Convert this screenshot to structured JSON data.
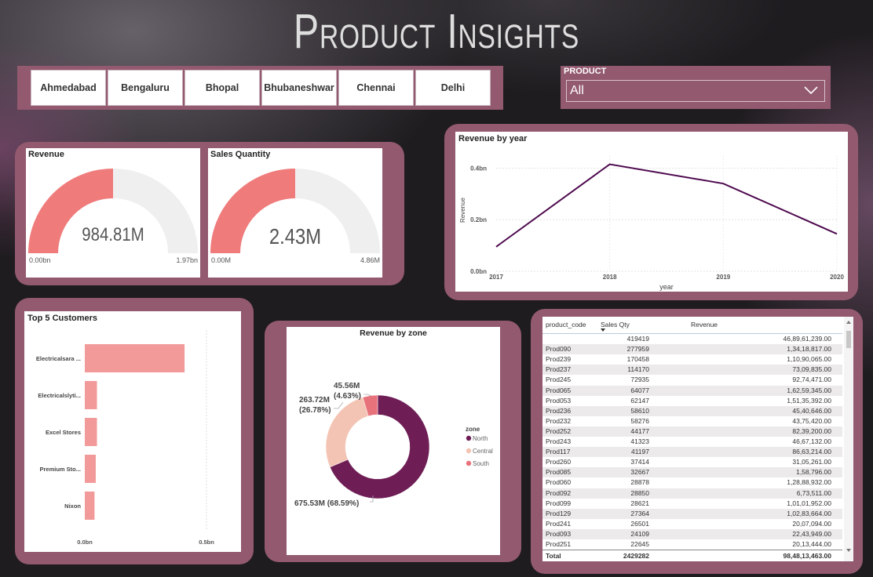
{
  "title": "Product Insights",
  "cities": [
    "Ahmedabad",
    "Bengaluru",
    "Bhopal",
    "Bhubaneshwar",
    "Chennai",
    "Delhi"
  ],
  "product_filter": {
    "label": "PRODUCT",
    "value": "All"
  },
  "kpis": {
    "revenue": {
      "title": "Revenue",
      "value": "984.81M",
      "min": "0.00bn",
      "max": "1.97bn",
      "fraction": 0.5
    },
    "sales_qty": {
      "title": "Sales Quantity",
      "value": "2.43M",
      "min": "0.00M",
      "max": "4.86M",
      "fraction": 0.5
    }
  },
  "gauge_colors": {
    "fill": "#f07b7b",
    "track": "#f0efef"
  },
  "revenue_by_year": {
    "title": "Revenue by year",
    "xlabel": "year",
    "ylabel": "Revenue",
    "y_ticks": [
      "0.0bn",
      "0.2bn",
      "0.4bn"
    ],
    "x_ticks": [
      "2017",
      "2018",
      "2019",
      "2020"
    ],
    "line_color": "#4e0a4e"
  },
  "top_customers": {
    "title": "Top 5 Customers",
    "x_ticks": [
      "0.0bn",
      "0.5bn"
    ],
    "bar_color": "#f29a9a"
  },
  "revenue_by_zone": {
    "title": "Revenue by zone",
    "legend_title": "zone",
    "labels": {
      "north": "675.53M (68.59%)",
      "central_value": "263.72M",
      "central_pct": "(26.78%)",
      "south_value": "45.56M",
      "south_pct": "(4.63%)"
    }
  },
  "product_table": {
    "headers": [
      "product_code",
      "Sales Qty",
      "Revenue"
    ],
    "rows": [
      [
        "",
        "419419",
        "46,89,61,239.00"
      ],
      [
        "Prod090",
        "277959",
        "1,34,18,817.00"
      ],
      [
        "Prod239",
        "170458",
        "1,10,90,065.00"
      ],
      [
        "Prod237",
        "114170",
        "73,09,835.00"
      ],
      [
        "Prod245",
        "72935",
        "92,74,471.00"
      ],
      [
        "Prod065",
        "64077",
        "1,62,59,345.00"
      ],
      [
        "Prod053",
        "62147",
        "1,51,35,392.00"
      ],
      [
        "Prod236",
        "58610",
        "45,40,646.00"
      ],
      [
        "Prod232",
        "58276",
        "43,75,420.00"
      ],
      [
        "Prod252",
        "44177",
        "82,39,200.00"
      ],
      [
        "Prod243",
        "41323",
        "46,67,132.00"
      ],
      [
        "Prod117",
        "41197",
        "86,63,214.00"
      ],
      [
        "Prod260",
        "37414",
        "31,05,261.00"
      ],
      [
        "Prod085",
        "32667",
        "1,58,796.00"
      ],
      [
        "Prod060",
        "28878",
        "1,28,88,932.00"
      ],
      [
        "Prod092",
        "28850",
        "6,73,511.00"
      ],
      [
        "Prod099",
        "28621",
        "1,01,01,952.00"
      ],
      [
        "Prod129",
        "27364",
        "1,02,83,664.00"
      ],
      [
        "Prod241",
        "26501",
        "20,07,094.00"
      ],
      [
        "Prod093",
        "24109",
        "22,43,949.00"
      ],
      [
        "Prod251",
        "22645",
        "20,13,444.00"
      ]
    ],
    "total": [
      "Total",
      "2429282",
      "98,48,13,463.00"
    ]
  },
  "chart_data": [
    {
      "type": "line",
      "title": "Revenue by year",
      "xlabel": "year",
      "ylabel": "Revenue",
      "x": [
        "2017",
        "2018",
        "2019",
        "2020"
      ],
      "y": [
        0.095,
        0.415,
        0.34,
        0.145
      ],
      "y_unit": "bn",
      "ylim": [
        0,
        0.45
      ],
      "grid": true
    },
    {
      "type": "bar",
      "orientation": "horizontal",
      "title": "Top 5 Customers",
      "categories": [
        "Electricalsara ...",
        "Electricalslyti...",
        "Excel Stores",
        "Premium Sto...",
        "Nixon"
      ],
      "values": [
        0.41,
        0.05,
        0.05,
        0.045,
        0.04
      ],
      "value_unit": "bn",
      "xlim": [
        0,
        0.5
      ]
    },
    {
      "type": "pie",
      "variant": "donut",
      "title": "Revenue by zone",
      "categories": [
        "North",
        "Central",
        "South"
      ],
      "values": [
        675.53,
        263.72,
        45.56
      ],
      "percentages": [
        68.59,
        26.78,
        4.63
      ],
      "value_unit": "M",
      "colors": [
        "#6e1d55",
        "#f3c4b3",
        "#e8727b"
      ],
      "legend": "right"
    }
  ]
}
